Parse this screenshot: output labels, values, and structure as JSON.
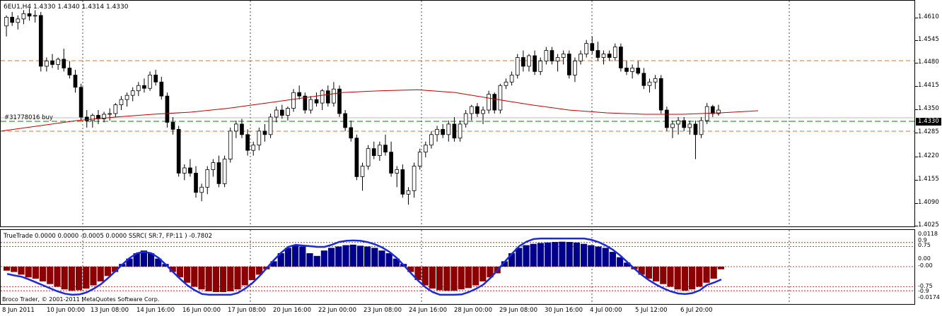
{
  "header": {
    "symbol_info": "6EU1,H4  1.4330 1.4340 1.4314 1.4330",
    "order_label": "#31778016 buy"
  },
  "price_axis": {
    "labels": [
      "1.4610",
      "1.4545",
      "1.4480",
      "1.4415",
      "1.4350",
      "1.4285",
      "1.4220",
      "1.4155",
      "1.4090",
      "1.4025"
    ],
    "current_price": "1.4330"
  },
  "indicator": {
    "title": "TrueTrade 0.0000 0.0000 -0.0005 0.0000  SSRC( SR:7, FP:11 ) -0.7802",
    "axis_labels": [
      "0.0118",
      "0.9",
      "0.75",
      "0.00",
      "-0.00",
      "-0.75",
      "-0.9",
      "-0.0174"
    ],
    "copyright": "Broco Trader, © 2001-2011 MetaQuotes Software Corp."
  },
  "time_axis": {
    "labels": [
      "8 Jun 2011",
      "10 Jun 00:00",
      "13 Jun 08:00",
      "14 Jun 16:00",
      "16 Jun 00:00",
      "17 Jun 08:00",
      "20 Jun 16:00",
      "22 Jun 00:00",
      "23 Jun 08:00",
      "24 Jun 16:00",
      "28 Jun 00:00",
      "29 Jun 08:00",
      "30 Jun 16:00",
      "4 Jul 00:00",
      "5 Jul 12:00",
      "6 Jul 20:00"
    ]
  },
  "colors": {
    "bull_fill": "#ffffff",
    "bear_fill": "#000000",
    "ma_line": "#c00000",
    "hist_positive": "#00008b",
    "hist_negative": "#8b0000",
    "curve": "#1a2bd6",
    "level_orange": "#e07020",
    "level_green": "#008000"
  },
  "chart_data": {
    "type": "candlestick",
    "timeframe": "H4",
    "ylim": [
      1.4,
      1.464
    ],
    "series": [
      {
        "name": "price",
        "ohlc": [
          [
            1.457,
            1.46,
            1.454,
            1.4595
          ],
          [
            1.4595,
            1.461,
            1.457,
            1.458
          ],
          [
            1.458,
            1.46,
            1.456,
            1.459
          ],
          [
            1.459,
            1.4615,
            1.4575,
            1.4605
          ],
          [
            1.4605,
            1.462,
            1.4585,
            1.4598
          ],
          [
            1.4598,
            1.4615,
            1.458,
            1.46
          ],
          [
            1.46,
            1.461,
            1.444,
            1.4455
          ],
          [
            1.4455,
            1.448,
            1.444,
            1.447
          ],
          [
            1.447,
            1.449,
            1.445,
            1.446
          ],
          [
            1.446,
            1.448,
            1.4445,
            1.4475
          ],
          [
            1.4475,
            1.4505,
            1.444,
            1.445
          ],
          [
            1.445,
            1.447,
            1.442,
            1.443
          ],
          [
            1.443,
            1.4445,
            1.438,
            1.4395
          ],
          [
            1.4395,
            1.4405,
            1.43,
            1.431
          ],
          [
            1.431,
            1.433,
            1.428,
            1.43
          ],
          [
            1.43,
            1.432,
            1.428,
            1.4315
          ],
          [
            1.4315,
            1.433,
            1.429,
            1.4305
          ],
          [
            1.4305,
            1.4325,
            1.4295,
            1.4318
          ],
          [
            1.4318,
            1.4335,
            1.43,
            1.432
          ],
          [
            1.432,
            1.435,
            1.431,
            1.4345
          ],
          [
            1.4345,
            1.437,
            1.433,
            1.436
          ],
          [
            1.436,
            1.438,
            1.434,
            1.4372
          ],
          [
            1.4372,
            1.4395,
            1.4355,
            1.4385
          ],
          [
            1.4385,
            1.441,
            1.437,
            1.44
          ],
          [
            1.44,
            1.442,
            1.438,
            1.4392
          ],
          [
            1.4392,
            1.444,
            1.4385,
            1.443
          ],
          [
            1.443,
            1.4445,
            1.44,
            1.441
          ],
          [
            1.441,
            1.4425,
            1.436,
            1.437
          ],
          [
            1.437,
            1.438,
            1.428,
            1.4295
          ],
          [
            1.4295,
            1.431,
            1.426,
            1.4275
          ],
          [
            1.4275,
            1.4285,
            1.414,
            1.415
          ],
          [
            1.415,
            1.4175,
            1.413,
            1.4165
          ],
          [
            1.4165,
            1.419,
            1.414,
            1.415
          ],
          [
            1.415,
            1.417,
            1.408,
            1.4095
          ],
          [
            1.4095,
            1.412,
            1.407,
            1.411
          ],
          [
            1.411,
            1.417,
            1.409,
            1.416
          ],
          [
            1.416,
            1.419,
            1.414,
            1.418
          ],
          [
            1.418,
            1.42,
            1.411,
            1.412
          ],
          [
            1.412,
            1.42,
            1.411,
            1.419
          ],
          [
            1.419,
            1.428,
            1.418,
            1.427
          ],
          [
            1.427,
            1.43,
            1.425,
            1.429
          ],
          [
            1.429,
            1.4305,
            1.425,
            1.426
          ],
          [
            1.426,
            1.4275,
            1.42,
            1.4215
          ],
          [
            1.4215,
            1.424,
            1.42,
            1.423
          ],
          [
            1.423,
            1.428,
            1.4215,
            1.427
          ],
          [
            1.427,
            1.429,
            1.424,
            1.426
          ],
          [
            1.426,
            1.432,
            1.425,
            1.431
          ],
          [
            1.431,
            1.434,
            1.4295,
            1.433
          ],
          [
            1.433,
            1.4345,
            1.4305,
            1.4315
          ],
          [
            1.4315,
            1.434,
            1.43,
            1.4335
          ],
          [
            1.4335,
            1.439,
            1.4325,
            1.438
          ],
          [
            1.438,
            1.44,
            1.436,
            1.437
          ],
          [
            1.437,
            1.438,
            1.432,
            1.433
          ],
          [
            1.433,
            1.437,
            1.432,
            1.436
          ],
          [
            1.436,
            1.438,
            1.434,
            1.435
          ],
          [
            1.435,
            1.439,
            1.433,
            1.4385
          ],
          [
            1.4385,
            1.44,
            1.434,
            1.435
          ],
          [
            1.435,
            1.441,
            1.434,
            1.439
          ],
          [
            1.439,
            1.44,
            1.431,
            1.432
          ],
          [
            1.432,
            1.433,
            1.427,
            1.428
          ],
          [
            1.428,
            1.43,
            1.424,
            1.425
          ],
          [
            1.425,
            1.426,
            1.413,
            1.414
          ],
          [
            1.414,
            1.418,
            1.41,
            1.417
          ],
          [
            1.417,
            1.423,
            1.416,
            1.422
          ],
          [
            1.422,
            1.424,
            1.419,
            1.42
          ],
          [
            1.42,
            1.424,
            1.4185,
            1.423
          ],
          [
            1.423,
            1.426,
            1.42,
            1.421
          ],
          [
            1.421,
            1.424,
            1.414,
            1.415
          ],
          [
            1.415,
            1.417,
            1.411,
            1.416
          ],
          [
            1.416,
            1.4175,
            1.408,
            1.409
          ],
          [
            1.409,
            1.411,
            1.406,
            1.41
          ],
          [
            1.41,
            1.418,
            1.408,
            1.417
          ],
          [
            1.417,
            1.422,
            1.416,
            1.421
          ],
          [
            1.421,
            1.424,
            1.4195,
            1.423
          ],
          [
            1.423,
            1.427,
            1.422,
            1.426
          ],
          [
            1.426,
            1.4285,
            1.424,
            1.4275
          ],
          [
            1.4275,
            1.429,
            1.425,
            1.426
          ],
          [
            1.426,
            1.43,
            1.424,
            1.429
          ],
          [
            1.429,
            1.431,
            1.424,
            1.425
          ],
          [
            1.425,
            1.43,
            1.424,
            1.429
          ],
          [
            1.429,
            1.433,
            1.428,
            1.432
          ],
          [
            1.432,
            1.4345,
            1.43,
            1.434
          ],
          [
            1.434,
            1.435,
            1.431,
            1.432
          ],
          [
            1.432,
            1.434,
            1.429,
            1.433
          ],
          [
            1.433,
            1.4385,
            1.432,
            1.4375
          ],
          [
            1.4375,
            1.438,
            1.432,
            1.433
          ],
          [
            1.433,
            1.4405,
            1.432,
            1.44
          ],
          [
            1.44,
            1.442,
            1.439,
            1.441
          ],
          [
            1.441,
            1.444,
            1.44,
            1.443
          ],
          [
            1.443,
            1.449,
            1.442,
            1.448
          ],
          [
            1.448,
            1.45,
            1.444,
            1.4455
          ],
          [
            1.4455,
            1.449,
            1.444,
            1.4485
          ],
          [
            1.4485,
            1.45,
            1.443,
            1.444
          ],
          [
            1.444,
            1.448,
            1.443,
            1.447
          ],
          [
            1.447,
            1.451,
            1.446,
            1.45
          ],
          [
            1.45,
            1.451,
            1.446,
            1.447
          ],
          [
            1.447,
            1.449,
            1.444,
            1.448
          ],
          [
            1.448,
            1.45,
            1.446,
            1.449
          ],
          [
            1.449,
            1.45,
            1.442,
            1.443
          ],
          [
            1.443,
            1.448,
            1.441,
            1.447
          ],
          [
            1.447,
            1.45,
            1.446,
            1.449
          ],
          [
            1.449,
            1.453,
            1.448,
            1.452
          ],
          [
            1.452,
            1.454,
            1.449,
            1.45
          ],
          [
            1.45,
            1.4525,
            1.447,
            1.448
          ],
          [
            1.448,
            1.45,
            1.446,
            1.449
          ],
          [
            1.449,
            1.45,
            1.447,
            1.448
          ],
          [
            1.448,
            1.452,
            1.447,
            1.451
          ],
          [
            1.451,
            1.452,
            1.444,
            1.445
          ],
          [
            1.445,
            1.447,
            1.443,
            1.444
          ],
          [
            1.444,
            1.446,
            1.442,
            1.445
          ],
          [
            1.445,
            1.447,
            1.443,
            1.4435
          ],
          [
            1.4435,
            1.445,
            1.439,
            1.44
          ],
          [
            1.44,
            1.442,
            1.438,
            1.441
          ],
          [
            1.441,
            1.443,
            1.439,
            1.442
          ],
          [
            1.442,
            1.443,
            1.432,
            1.433
          ],
          [
            1.433,
            1.434,
            1.427,
            1.428
          ],
          [
            1.428,
            1.43,
            1.425,
            1.429
          ],
          [
            1.429,
            1.431,
            1.426,
            1.43
          ],
          [
            1.43,
            1.431,
            1.427,
            1.428
          ],
          [
            1.428,
            1.43,
            1.426,
            1.429
          ],
          [
            1.429,
            1.43,
            1.419,
            1.426
          ],
          [
            1.426,
            1.431,
            1.425,
            1.43
          ],
          [
            1.43,
            1.435,
            1.429,
            1.434
          ],
          [
            1.434,
            1.4345,
            1.431,
            1.432
          ],
          [
            1.432,
            1.4345,
            1.4314,
            1.433
          ]
        ]
      },
      {
        "name": "moving_average",
        "values": [
          1.427,
          1.4285,
          1.43,
          1.431,
          1.4318,
          1.4324,
          1.4335,
          1.435,
          1.4365,
          1.438,
          1.4385,
          1.4388,
          1.438,
          1.4362,
          1.4345,
          1.433,
          1.4322,
          1.4318,
          1.4318,
          1.4322,
          1.4328
        ]
      }
    ],
    "indicator": {
      "name": "SSRC( SR:7, FP:11 )",
      "histogram": [
        -0.15,
        -0.2,
        -0.3,
        -0.4,
        -0.45,
        -0.55,
        -0.65,
        -0.75,
        -0.85,
        -0.9,
        -0.88,
        -0.82,
        -0.7,
        -0.55,
        -0.35,
        -0.2,
        0.1,
        0.3,
        0.5,
        0.6,
        0.5,
        0.3,
        0.1,
        -0.2,
        -0.4,
        -0.6,
        -0.75,
        -0.85,
        -0.92,
        -0.95,
        -0.95,
        -0.92,
        -0.85,
        -0.7,
        -0.5,
        -0.3,
        -0.1,
        0.2,
        0.5,
        0.7,
        0.8,
        0.75,
        0.5,
        0.4,
        0.6,
        0.7,
        0.75,
        0.8,
        0.82,
        0.78,
        0.75,
        0.7,
        0.6,
        0.5,
        0.3,
        0.1,
        -0.2,
        -0.5,
        -0.7,
        -0.82,
        -0.88,
        -0.9,
        -0.9,
        -0.85,
        -0.8,
        -0.7,
        -0.55,
        -0.4,
        -0.25,
        0.2,
        0.5,
        0.7,
        0.8,
        0.85,
        0.88,
        0.9,
        0.92,
        0.93,
        0.92,
        0.9,
        0.85,
        0.8,
        0.75,
        0.7,
        0.55,
        0.35,
        0.15,
        -0.1,
        -0.3,
        -0.45,
        -0.55,
        -0.65,
        -0.75,
        -0.85,
        -0.9,
        -0.85,
        -0.75,
        -0.6,
        -0.45,
        -0.1
      ],
      "levels": [
        0.9,
        0.75,
        0.0,
        -0.75,
        -0.9
      ]
    }
  }
}
